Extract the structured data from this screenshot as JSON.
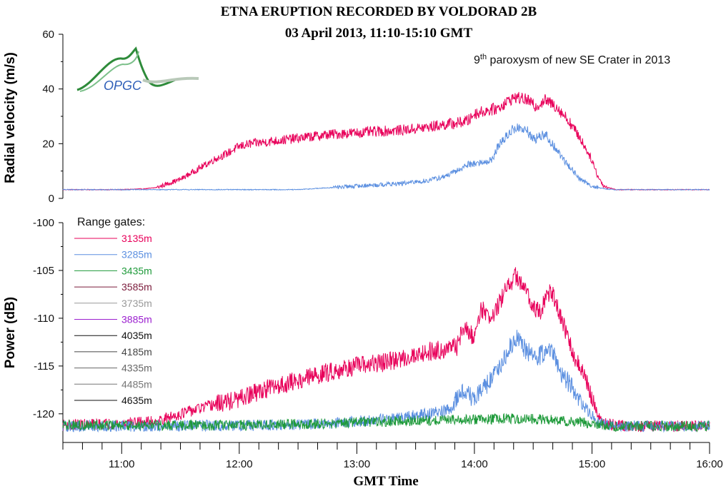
{
  "chart_data": [
    {
      "type": "line",
      "title": "ETNA ERUPTION RECORDED BY VOLDORAD 2B",
      "subtitle": "03 April 2013, 11:10-15:10 GMT",
      "annotation_main": "9",
      "annotation_sup": "th",
      "annotation_rest": " paroxysm of new SE Crater in 2013",
      "logo_text": "OPGC",
      "xlabel": "",
      "ylabel": "Radial velocity (m/s)",
      "xlim": [
        10.5,
        16.0
      ],
      "ylim": [
        0,
        60
      ],
      "yticks": [
        0,
        20,
        40,
        60
      ],
      "ytick_labels": [
        "0",
        "20",
        "40",
        "60"
      ],
      "series": [
        {
          "name": "3135m",
          "color": "#e8005a",
          "points": [
            [
              10.5,
              3.2
            ],
            [
              11.0,
              3.2
            ],
            [
              11.2,
              3.5
            ],
            [
              11.3,
              4.0
            ],
            [
              11.4,
              5.5
            ],
            [
              11.5,
              7.0
            ],
            [
              11.6,
              9.5
            ],
            [
              11.7,
              12.0
            ],
            [
              11.8,
              14.5
            ],
            [
              11.9,
              16.5
            ],
            [
              12.0,
              19.0
            ],
            [
              12.1,
              20.0
            ],
            [
              12.2,
              20.5
            ],
            [
              12.3,
              21.0
            ],
            [
              12.4,
              21.5
            ],
            [
              12.6,
              22.5
            ],
            [
              12.8,
              23.5
            ],
            [
              13.0,
              24.0
            ],
            [
              13.2,
              24.5
            ],
            [
              13.4,
              25.0
            ],
            [
              13.6,
              26.0
            ],
            [
              13.75,
              27.0
            ],
            [
              13.85,
              27.5
            ],
            [
              13.95,
              28.5
            ],
            [
              14.0,
              31.0
            ],
            [
              14.1,
              32.0
            ],
            [
              14.2,
              33.0
            ],
            [
              14.3,
              36.0
            ],
            [
              14.35,
              37.0
            ],
            [
              14.45,
              36.0
            ],
            [
              14.52,
              33.5
            ],
            [
              14.6,
              36.0
            ],
            [
              14.7,
              33.5
            ],
            [
              14.8,
              28.5
            ],
            [
              14.9,
              22.0
            ],
            [
              15.0,
              14.0
            ],
            [
              15.05,
              8.0
            ],
            [
              15.1,
              4.5
            ],
            [
              15.2,
              3.2
            ],
            [
              16.0,
              3.2
            ]
          ]
        },
        {
          "name": "3285m",
          "color": "#5b8fe0",
          "points": [
            [
              10.5,
              3.2
            ],
            [
              12.5,
              3.2
            ],
            [
              12.8,
              4.0
            ],
            [
              13.0,
              4.5
            ],
            [
              13.2,
              5.0
            ],
            [
              13.4,
              5.5
            ],
            [
              13.6,
              6.5
            ],
            [
              13.75,
              8.0
            ],
            [
              13.85,
              10.0
            ],
            [
              13.95,
              12.5
            ],
            [
              14.05,
              13.0
            ],
            [
              14.15,
              14.0
            ],
            [
              14.2,
              19.0
            ],
            [
              14.3,
              24.0
            ],
            [
              14.35,
              26.0
            ],
            [
              14.45,
              24.5
            ],
            [
              14.5,
              21.5
            ],
            [
              14.6,
              23.5
            ],
            [
              14.7,
              17.5
            ],
            [
              14.8,
              12.0
            ],
            [
              14.9,
              7.0
            ],
            [
              15.0,
              4.5
            ],
            [
              15.1,
              3.5
            ],
            [
              15.2,
              3.2
            ],
            [
              16.0,
              3.2
            ]
          ]
        }
      ]
    },
    {
      "type": "line",
      "xlabel": "GMT Time",
      "ylabel": "Power (dB)",
      "xlim": [
        10.5,
        16.0
      ],
      "ylim": [
        -123,
        -100
      ],
      "yticks": [
        -120,
        -115,
        -110,
        -105,
        -100
      ],
      "ytick_labels": [
        "-120",
        "-115",
        "-110",
        "-105",
        "-100"
      ],
      "xticks": [
        11,
        12,
        13,
        14,
        15,
        16
      ],
      "xtick_labels": [
        "11:00",
        "12:00",
        "13:00",
        "14:00",
        "15:00",
        "16:00"
      ],
      "legend_title": "Range gates:",
      "legend": [
        {
          "name": "3135m",
          "color": "#e8005a"
        },
        {
          "name": "3285m",
          "color": "#5b8fe0"
        },
        {
          "name": "3435m",
          "color": "#1e9a3a"
        },
        {
          "name": "3585m",
          "color": "#7a1a3a"
        },
        {
          "name": "3735m",
          "color": "#999999"
        },
        {
          "name": "3885m",
          "color": "#9b1fcf"
        },
        {
          "name": "4035m",
          "color": "#111111"
        },
        {
          "name": "4185m",
          "color": "#444444"
        },
        {
          "name": "4335m",
          "color": "#666666"
        },
        {
          "name": "4485m",
          "color": "#777777"
        },
        {
          "name": "4635m",
          "color": "#111111"
        }
      ],
      "series": [
        {
          "name": "3135m",
          "color": "#e8005a",
          "points": [
            [
              10.5,
              -121.2
            ],
            [
              11.0,
              -121.0
            ],
            [
              11.3,
              -120.8
            ],
            [
              11.5,
              -120.0
            ],
            [
              11.8,
              -119.0
            ],
            [
              12.0,
              -118.5
            ],
            [
              12.2,
              -117.5
            ],
            [
              12.5,
              -116.5
            ],
            [
              12.8,
              -115.5
            ],
            [
              13.0,
              -115.0
            ],
            [
              13.3,
              -114.5
            ],
            [
              13.6,
              -113.5
            ],
            [
              13.85,
              -113.0
            ],
            [
              13.9,
              -111.0
            ],
            [
              14.0,
              -112.0
            ],
            [
              14.05,
              -109.0
            ],
            [
              14.15,
              -110.0
            ],
            [
              14.25,
              -107.5
            ],
            [
              14.35,
              -105.5
            ],
            [
              14.45,
              -107.5
            ],
            [
              14.55,
              -109.5
            ],
            [
              14.65,
              -107.0
            ],
            [
              14.75,
              -110.5
            ],
            [
              14.85,
              -114.0
            ],
            [
              14.95,
              -116.5
            ],
            [
              15.0,
              -118.5
            ],
            [
              15.05,
              -120.0
            ],
            [
              15.1,
              -121.0
            ],
            [
              15.3,
              -121.3
            ],
            [
              16.0,
              -121.3
            ]
          ]
        },
        {
          "name": "3285m",
          "color": "#5b8fe0",
          "points": [
            [
              10.5,
              -121.3
            ],
            [
              12.5,
              -121.2
            ],
            [
              12.8,
              -121.0
            ],
            [
              13.0,
              -120.8
            ],
            [
              13.3,
              -120.5
            ],
            [
              13.6,
              -120.0
            ],
            [
              13.8,
              -119.5
            ],
            [
              13.9,
              -117.5
            ],
            [
              14.0,
              -118.5
            ],
            [
              14.1,
              -117.0
            ],
            [
              14.2,
              -115.5
            ],
            [
              14.3,
              -113.0
            ],
            [
              14.35,
              -112.0
            ],
            [
              14.45,
              -113.5
            ],
            [
              14.55,
              -114.0
            ],
            [
              14.65,
              -113.0
            ],
            [
              14.75,
              -116.0
            ],
            [
              14.85,
              -117.5
            ],
            [
              14.95,
              -119.5
            ],
            [
              15.05,
              -120.8
            ],
            [
              15.2,
              -121.3
            ],
            [
              16.0,
              -121.3
            ]
          ]
        },
        {
          "name": "3435m",
          "color": "#1e9a3a",
          "points": [
            [
              10.5,
              -121.2
            ],
            [
              12.0,
              -121.2
            ],
            [
              12.8,
              -121.0
            ],
            [
              13.2,
              -120.8
            ],
            [
              13.6,
              -120.7
            ],
            [
              14.0,
              -120.6
            ],
            [
              14.3,
              -120.5
            ],
            [
              14.6,
              -120.6
            ],
            [
              15.0,
              -121.0
            ],
            [
              15.2,
              -121.3
            ],
            [
              16.0,
              -121.3
            ]
          ]
        }
      ]
    }
  ]
}
